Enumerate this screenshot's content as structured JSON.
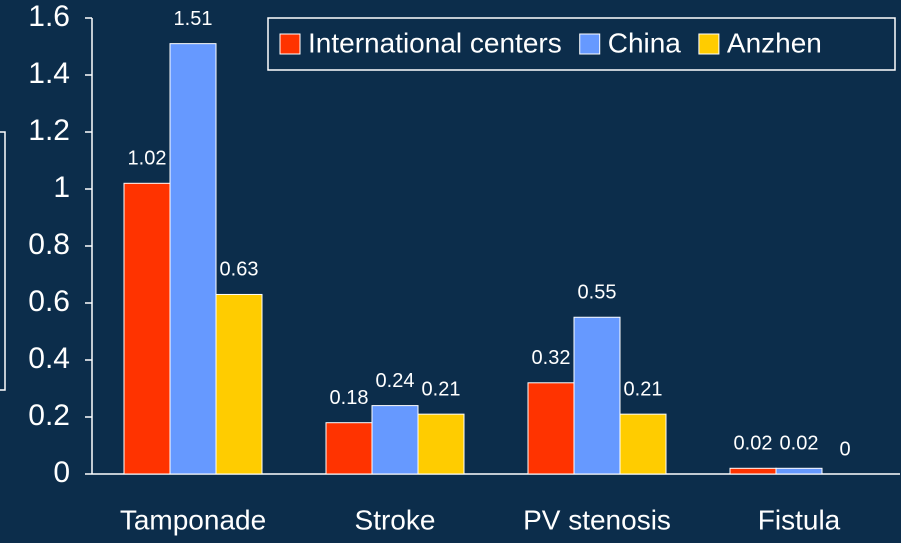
{
  "chart_data": {
    "type": "bar",
    "categories": [
      "Tamponade",
      "Stroke",
      "PV stenosis",
      "Fistula"
    ],
    "series": [
      {
        "name": "International centers",
        "color": "#ff3300",
        "values": [
          1.02,
          0.18,
          0.32,
          0.02
        ]
      },
      {
        "name": "China",
        "color": "#6699ff",
        "values": [
          1.51,
          0.24,
          0.55,
          0.02
        ]
      },
      {
        "name": "Anzhen",
        "color": "#ffcc00",
        "values": [
          0.63,
          0.21,
          0.21,
          0
        ]
      }
    ],
    "ylim": [
      0,
      1.6
    ],
    "yticks": [
      0,
      0.2,
      0.4,
      0.6,
      0.8,
      1,
      1.2,
      1.4,
      1.6
    ],
    "legend": "top-right"
  }
}
